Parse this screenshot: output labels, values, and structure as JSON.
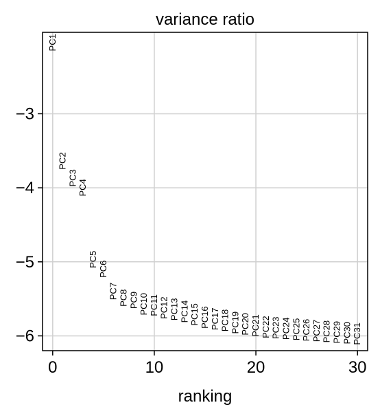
{
  "chart_data": {
    "type": "scatter",
    "title": "variance ratio",
    "xlabel": "ranking",
    "ylabel": "",
    "xlim": [
      -1,
      31
    ],
    "ylim": [
      -6.2,
      -1.9
    ],
    "xticks": [
      0,
      10,
      20,
      30
    ],
    "yticks": [
      -3,
      -4,
      -5,
      -6
    ],
    "xtick_labels": [
      "0",
      "10",
      "20",
      "30"
    ],
    "ytick_labels": [
      "−3",
      "−4",
      "−5",
      "−6"
    ],
    "grid": true,
    "points": [
      {
        "label": "PC1",
        "x": 0,
        "y": -1.92
      },
      {
        "label": "PC2",
        "x": 1,
        "y": -3.52
      },
      {
        "label": "PC3",
        "x": 2,
        "y": -3.75
      },
      {
        "label": "PC4",
        "x": 3,
        "y": -3.88
      },
      {
        "label": "PC5",
        "x": 4,
        "y": -4.85
      },
      {
        "label": "PC6",
        "x": 5,
        "y": -4.98
      },
      {
        "label": "PC7",
        "x": 6,
        "y": -5.28
      },
      {
        "label": "PC8",
        "x": 7,
        "y": -5.37
      },
      {
        "label": "PC9",
        "x": 8,
        "y": -5.4
      },
      {
        "label": "PC10",
        "x": 9,
        "y": -5.42
      },
      {
        "label": "PC11",
        "x": 10,
        "y": -5.44
      },
      {
        "label": "PC12",
        "x": 11,
        "y": -5.47
      },
      {
        "label": "PC13",
        "x": 12,
        "y": -5.49
      },
      {
        "label": "PC14",
        "x": 13,
        "y": -5.52
      },
      {
        "label": "PC15",
        "x": 14,
        "y": -5.56
      },
      {
        "label": "PC16",
        "x": 15,
        "y": -5.6
      },
      {
        "label": "PC17",
        "x": 16,
        "y": -5.62
      },
      {
        "label": "PC18",
        "x": 17,
        "y": -5.64
      },
      {
        "label": "PC19",
        "x": 18,
        "y": -5.67
      },
      {
        "label": "PC20",
        "x": 19,
        "y": -5.69
      },
      {
        "label": "PC21",
        "x": 20,
        "y": -5.71
      },
      {
        "label": "PC22",
        "x": 21,
        "y": -5.73
      },
      {
        "label": "PC23",
        "x": 22,
        "y": -5.74
      },
      {
        "label": "PC24",
        "x": 23,
        "y": -5.75
      },
      {
        "label": "PC25",
        "x": 24,
        "y": -5.76
      },
      {
        "label": "PC26",
        "x": 25,
        "y": -5.77
      },
      {
        "label": "PC27",
        "x": 26,
        "y": -5.78
      },
      {
        "label": "PC28",
        "x": 27,
        "y": -5.79
      },
      {
        "label": "PC29",
        "x": 28,
        "y": -5.8
      },
      {
        "label": "PC30",
        "x": 29,
        "y": -5.81
      },
      {
        "label": "PC31",
        "x": 30,
        "y": -5.82
      }
    ]
  }
}
